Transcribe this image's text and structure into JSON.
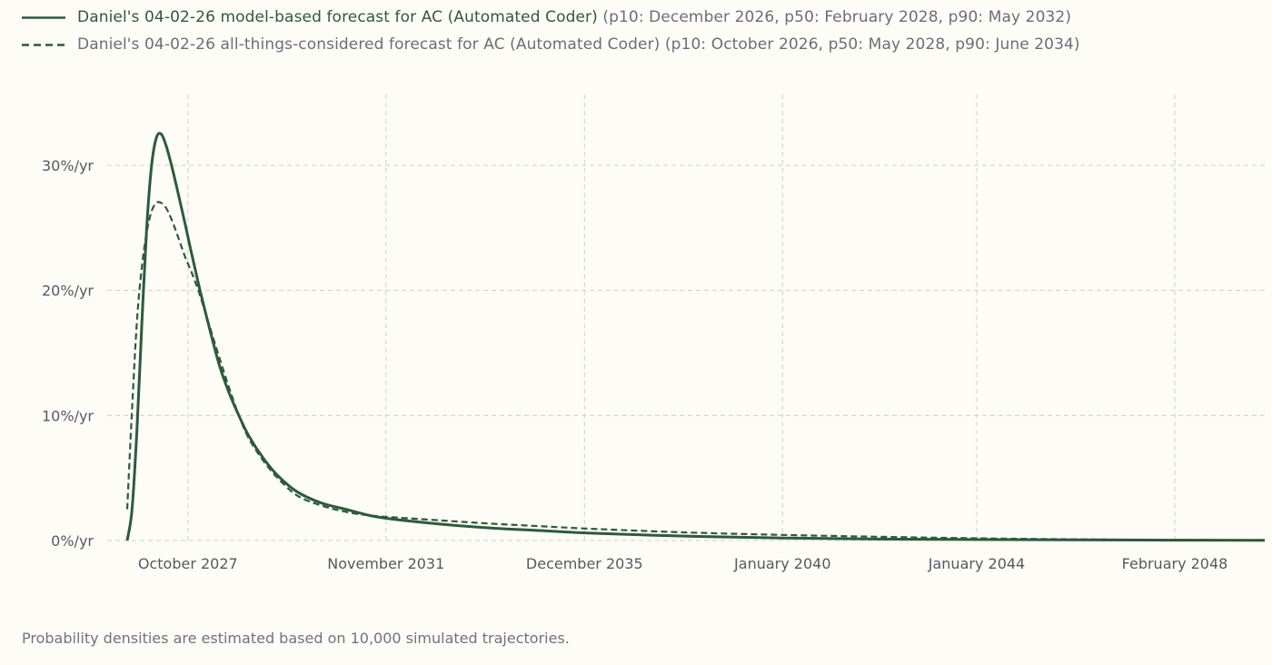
{
  "legend": [
    {
      "name": "Daniel's 04-02-26 model-based forecast for AC (Automated Coder)",
      "detail": "(p10: December 2026, p50: February 2028, p90: May 2032)",
      "style": "solid",
      "color": "#2d5a3d"
    },
    {
      "name": "Daniel's 04-02-26 all-things-considered forecast for AC (Automated Coder)",
      "detail": "(p10: October 2026, p50: May 2028, p90: June 2034)",
      "style": "dashed",
      "color": "#2d5a3d"
    }
  ],
  "footnote": "Probability densities are estimated based on 10,000 simulated trajectories.",
  "chart_data": {
    "type": "line",
    "title": "",
    "xlabel": "",
    "ylabel": "",
    "grid": true,
    "legend_position": "top-left",
    "x_unit": "year",
    "xlim": [
      2026.3,
      2050.0
    ],
    "ylim": [
      0,
      35
    ],
    "x_ticks": [
      {
        "value": 2027.75,
        "label": "October 2027"
      },
      {
        "value": 2031.83,
        "label": "November 2031"
      },
      {
        "value": 2035.92,
        "label": "December 2035"
      },
      {
        "value": 2040.0,
        "label": "January 2040"
      },
      {
        "value": 2044.0,
        "label": "January 2044"
      },
      {
        "value": 2048.08,
        "label": "February 2048"
      }
    ],
    "y_ticks": [
      {
        "value": 0,
        "label": "0%/yr"
      },
      {
        "value": 10,
        "label": "10%/yr"
      },
      {
        "value": 20,
        "label": "20%/yr"
      },
      {
        "value": 30,
        "label": "30%/yr"
      }
    ],
    "series": [
      {
        "name": "Daniel's 04-02-26 model-based forecast for AC (Automated Coder)",
        "style": "solid",
        "x": [
          2026.5,
          2026.6,
          2026.7,
          2026.8,
          2026.9,
          2027.0,
          2027.1,
          2027.2,
          2027.3,
          2027.4,
          2027.5,
          2027.6,
          2027.7,
          2027.8,
          2027.9,
          2028.0,
          2028.2,
          2028.4,
          2028.6,
          2028.8,
          2029.0,
          2029.3,
          2029.6,
          2030.0,
          2030.5,
          2031.0,
          2031.5,
          2032.0,
          2033.0,
          2034.0,
          2035.0,
          2036.0,
          2038.0,
          2040.0,
          2042.0,
          2044.0,
          2046.0,
          2048.0,
          2050.0
        ],
        "values": [
          0,
          2.5,
          8.8,
          17.2,
          24.9,
          29.9,
          32.2,
          32.5,
          31.6,
          30.2,
          28.6,
          26.9,
          25.2,
          23.4,
          21.7,
          20.0,
          16.9,
          14.0,
          11.8,
          10.0,
          8.4,
          6.6,
          5.2,
          3.9,
          3.0,
          2.5,
          2.0,
          1.7,
          1.3,
          1.0,
          0.8,
          0.6,
          0.35,
          0.2,
          0.12,
          0.08,
          0.05,
          0.03,
          0.02
        ]
      },
      {
        "name": "Daniel's 04-02-26 all-things-considered forecast for AC (Automated Coder)",
        "style": "dashed",
        "x": [
          2026.5,
          2026.6,
          2026.7,
          2026.8,
          2026.9,
          2027.0,
          2027.1,
          2027.2,
          2027.3,
          2027.4,
          2027.5,
          2027.6,
          2027.7,
          2027.8,
          2027.9,
          2028.0,
          2028.2,
          2028.4,
          2028.6,
          2028.8,
          2029.0,
          2029.3,
          2029.6,
          2030.0,
          2030.5,
          2031.0,
          2031.5,
          2032.0,
          2033.0,
          2034.0,
          2035.0,
          2036.0,
          2038.0,
          2040.0,
          2042.0,
          2044.0,
          2046.0,
          2048.0,
          2050.0
        ],
        "values": [
          2.5,
          10.5,
          17.5,
          21.8,
          24.6,
          26.3,
          27.0,
          27.0,
          26.6,
          25.8,
          24.8,
          23.7,
          22.6,
          21.7,
          20.7,
          19.6,
          17.1,
          14.6,
          12.2,
          10.0,
          8.2,
          6.4,
          5.0,
          3.6,
          2.8,
          2.3,
          2.0,
          1.85,
          1.6,
          1.35,
          1.15,
          0.95,
          0.65,
          0.45,
          0.3,
          0.18,
          0.1,
          0.05,
          0.02
        ]
      }
    ]
  }
}
